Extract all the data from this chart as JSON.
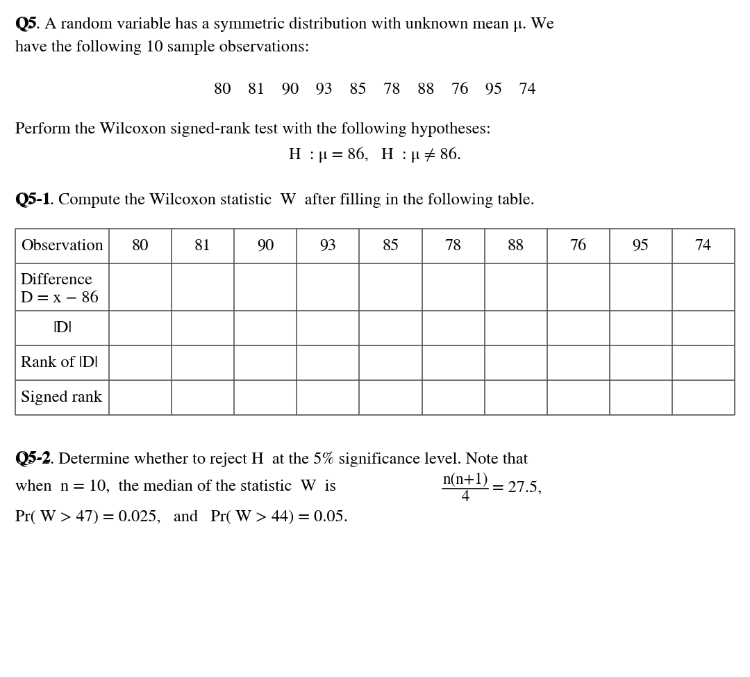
{
  "bg_color": "#ffffff",
  "text_color": "#000000",
  "figsize": [
    10.8,
    9.74
  ],
  "dpi": 100,
  "font_family": "STIXGeneral",
  "font_size": 17.5,
  "table_headers": [
    "Observation",
    "80",
    "81",
    "90",
    "93",
    "85",
    "78",
    "88",
    "76",
    "95",
    "74"
  ],
  "obs_numbers": "80    81    90    93    85    78    88    76    95    74",
  "q52_frac_num": "n(n+1)",
  "q52_frac_den": "4",
  "q52_eq": "= 27.5,"
}
